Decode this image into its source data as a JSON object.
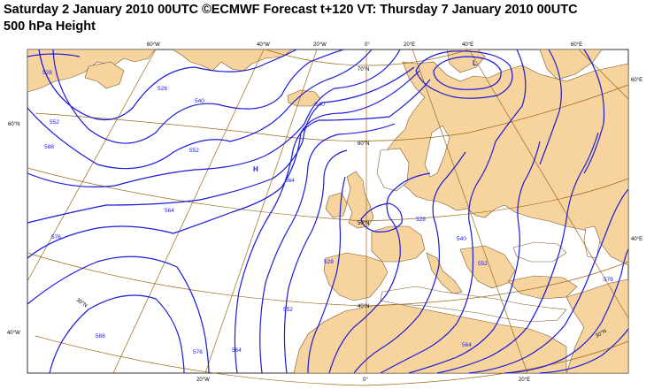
{
  "header": {
    "title_line1": "Saturday 2 January 2010 00UTC ©ECMWF Forecast t+120 VT: Thursday 7 January 2010 00UTC",
    "title_line2": "500 hPa Height"
  },
  "colors": {
    "land": "#f7d39e",
    "coast": "#7a5a2a",
    "grid": "#9a6a18",
    "contour": "#1a1adb"
  },
  "axis_labels": {
    "top": [
      "60°W",
      "40°W",
      "20°W",
      "0°",
      "20°E",
      "40°E",
      "60°E"
    ],
    "bottom": [
      "20°W",
      "0°",
      "20°E"
    ],
    "left": [
      "60°N",
      "40°W"
    ],
    "right": [
      "60°E",
      "40°E"
    ],
    "interior": [
      "70°N",
      "60°N",
      "50°N",
      "40°N",
      "30°N",
      "30°N"
    ]
  },
  "contour_labels": [
    "528",
    "528",
    "540",
    "552",
    "564",
    "576",
    "588",
    "552",
    "540",
    "564",
    "528",
    "528",
    "540",
    "552",
    "564",
    "576",
    "588",
    "552",
    "564",
    "576"
  ],
  "pressure_centres": [
    "H",
    "L"
  ]
}
